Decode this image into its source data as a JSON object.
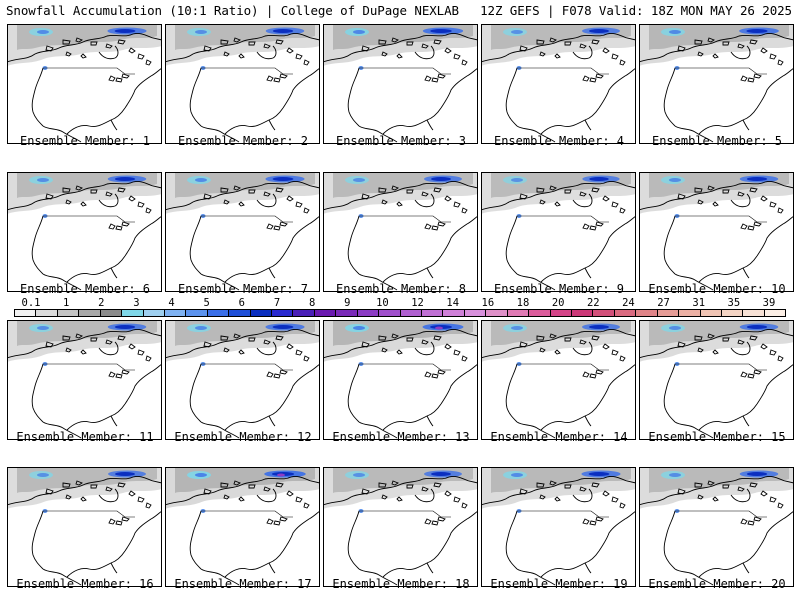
{
  "header": {
    "title_left": "Snowfall Accumulation (10:1 Ratio) | College of DuPage NEXLAB",
    "title_right": "12Z GEFS | F078 Valid: 18Z MON MAY 26 2025"
  },
  "members": [
    {
      "label": "Ensemble Member: 1",
      "snow_intensity": 0.6
    },
    {
      "label": "Ensemble Member: 2",
      "snow_intensity": 0.55
    },
    {
      "label": "Ensemble Member: 3",
      "snow_intensity": 0.7
    },
    {
      "label": "Ensemble Member: 4",
      "snow_intensity": 0.5
    },
    {
      "label": "Ensemble Member: 5",
      "snow_intensity": 0.65
    },
    {
      "label": "Ensemble Member: 6",
      "snow_intensity": 0.55
    },
    {
      "label": "Ensemble Member: 7",
      "snow_intensity": 0.6
    },
    {
      "label": "Ensemble Member: 8",
      "snow_intensity": 0.5
    },
    {
      "label": "Ensemble Member: 9",
      "snow_intensity": 0.45
    },
    {
      "label": "Ensemble Member: 10",
      "snow_intensity": 0.55
    },
    {
      "label": "Ensemble Member: 11",
      "snow_intensity": 0.55
    },
    {
      "label": "Ensemble Member: 12",
      "snow_intensity": 0.6
    },
    {
      "label": "Ensemble Member: 13",
      "snow_intensity": 0.75
    },
    {
      "label": "Ensemble Member: 14",
      "snow_intensity": 0.5
    },
    {
      "label": "Ensemble Member: 15",
      "snow_intensity": 0.55
    },
    {
      "label": "Ensemble Member: 16",
      "snow_intensity": 0.5
    },
    {
      "label": "Ensemble Member: 17",
      "snow_intensity": 0.8
    },
    {
      "label": "Ensemble Member: 18",
      "snow_intensity": 0.5
    },
    {
      "label": "Ensemble Member: 19",
      "snow_intensity": 0.6
    },
    {
      "label": "Ensemble Member: 20",
      "snow_intensity": 0.55
    }
  ],
  "colorbar": {
    "tick_labels": [
      "0.1",
      "1",
      "2",
      "3",
      "4",
      "5",
      "6",
      "7",
      "8",
      "9",
      "10",
      "12",
      "14",
      "16",
      "18",
      "20",
      "22",
      "24",
      "27",
      "31",
      "35",
      "39"
    ],
    "colors": [
      "#f2f2f2",
      "#dcdcdc",
      "#c4c4c4",
      "#a8a8a8",
      "#8c8c8c",
      "#7fd7e8",
      "#9fd0f0",
      "#7fb2f2",
      "#5c93ee",
      "#3b6fe8",
      "#1f4fd8",
      "#0b2fc0",
      "#2a2ad0",
      "#4a1fb8",
      "#6a19b0",
      "#7a2ab8",
      "#8c3cc4",
      "#a050cc",
      "#b060d0",
      "#c070d4",
      "#cf80d8",
      "#d890dc",
      "#df90c8",
      "#e07ab4",
      "#dc5c9c",
      "#d44488",
      "#cc3878",
      "#d2507a",
      "#da6a80",
      "#e08488",
      "#e69c96",
      "#ecb0a4",
      "#f0c4b4",
      "#f4d4c4",
      "#f8e2d6",
      "#fcefe6"
    ]
  }
}
